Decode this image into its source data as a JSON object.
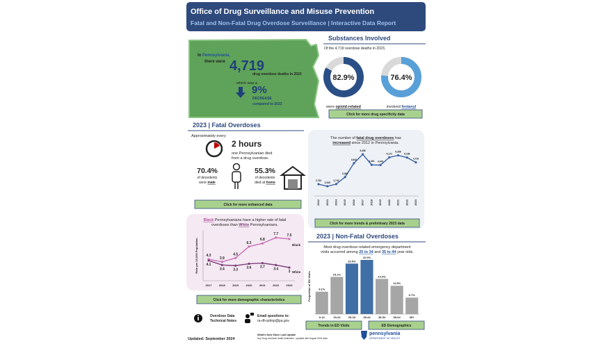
{
  "header": {
    "title": "Office of Drug Surveillance and Misuse Prevention",
    "subtitle": "Fatal and Non-Fatal Drug Overdose Surveillance | Interactive Data Report"
  },
  "pa_summary": {
    "lead_1": "In",
    "state": "Pennsylvania,",
    "lead_2": "there were",
    "count": "4,719",
    "count_note": "drug overdose deaths in 2023",
    "change_lead": "which was a",
    "change": "9%",
    "change_direction": "DECREASE",
    "change_note": "compared to 2022"
  },
  "substances": {
    "heading": "Substances Involved",
    "intro": "Of the 4,719 overdose deaths in 2023,",
    "donuts": [
      {
        "value": 82.9,
        "label": "82.9%",
        "caption_pre": "were",
        "caption_key": "opioid-related",
        "color": "#2a4f86"
      },
      {
        "value": 76.4,
        "label": "76.4%",
        "caption_pre": "involved",
        "caption_key": "fentanyl",
        "color": "#5aa0d8"
      }
    ],
    "button": "Click for more drug specificity data"
  },
  "fatal": {
    "heading": "2023 | Fatal Overdoses",
    "intro": "Approximately every",
    "interval": "2 hours",
    "interval_note_1": "one Pennsylvanian died",
    "interval_note_2": "from a drug overdose.",
    "male_pct": "70.4%",
    "male_note_1": "of decedents",
    "male_note_2": "were",
    "male_key": "male",
    "home_pct": "55.3%",
    "home_note_1": "of decedents",
    "home_note_2": "died at",
    "home_key": "home",
    "button": "Click for more enhanced data"
  },
  "trend": {
    "caption": {
      "p1": "The number of",
      "k1": "fatal drug overdoses",
      "p2": "has",
      "k2": "increased",
      "p3": "since 2012 in Pennsylvania."
    },
    "chart": {
      "type": "line",
      "categories": [
        "2012",
        "2013",
        "2014",
        "2015",
        "2016",
        "2017",
        "2018",
        "2019",
        "2020",
        "2021",
        "2022",
        "2023"
      ],
      "series": [
        {
          "color": "#3b63a0",
          "values": [
            2732,
            2545,
            2742,
            3383,
            4642,
            5456,
            4491,
            4476,
            5172,
            5356,
            5158,
            4719
          ],
          "value_labels": [
            "2,732",
            "2,545",
            "2,742",
            "3,383",
            "4,642",
            "5,456",
            "4,491",
            "4,476",
            "5,172",
            "5,356",
            "5,158",
            "4,719"
          ]
        }
      ]
    },
    "button": "Click for more trends & preliminary 2023 data"
  },
  "demographics": {
    "caption": {
      "k1": "Black",
      "p1": "Pennsylvanians have a higher rate of fatal",
      "p2": "overdoses than",
      "k2": "White",
      "p3": "Pennsylvanians."
    },
    "chart": {
      "type": "line",
      "y_label": "Rate per 10,000 Population",
      "categories": [
        "2017",
        "2018",
        "2019",
        "2020",
        "2021",
        "2022",
        "2023"
      ],
      "series": [
        {
          "name": "Black",
          "color": "#c86fb4",
          "values": [
            4.3,
            3.9,
            4.5,
            6.3,
            6.8,
            7.7,
            7.5
          ]
        },
        {
          "name": "White",
          "color": "#7b3f78",
          "values": [
            4.1,
            3.4,
            3.3,
            3.6,
            3.7,
            3.4,
            3.0
          ]
        }
      ]
    },
    "button": "Click for more demographic characteristics"
  },
  "non_fatal": {
    "heading": "2023 | Non-Fatal Overdoses",
    "caption": {
      "p1": "Most drug overdose-related emergency department",
      "p2": "visits accurred among",
      "k1": "25 to 34",
      "p3": "and",
      "k2": "35 to 44",
      "p4": "year olds."
    },
    "chart": {
      "type": "bar",
      "y_label": "Proportion of ED Visits",
      "categories": [
        "0-14",
        "15-24",
        "25-34",
        "35-44",
        "45-54",
        "55-64",
        "65+"
      ],
      "values": [
        9.1,
        15.1,
        20.5,
        22.0,
        14.3,
        11.5,
        6.7
      ],
      "value_labels": [
        "9.1%",
        "15.1%",
        "20.5%",
        "22.0%",
        "14.3%",
        "11.5%",
        "6.7%"
      ],
      "colors": [
        "#a6a6a6",
        "#a6a6a6",
        "#3f6fa5",
        "#3f6fa5",
        "#a6a6a6",
        "#a6a6a6",
        "#a6a6a6"
      ]
    },
    "buttons": [
      "Trends in ED Visits",
      "ED Demographics"
    ]
  },
  "footer": {
    "notes_1": "Overdose Data",
    "notes_2": "Technical Notes",
    "email_lead": "Email questions to:",
    "email": "ra-dh-pdmp@pa.gov",
    "updated": "Updated: September 2024",
    "whats_new": "What's New Since Last Update",
    "whats_new_text": "Any Drug overdose death estimates - updated with August 2024 data",
    "logo_name": "pennsylvania",
    "logo_dept": "DEPARTMENT OF HEALTH"
  }
}
